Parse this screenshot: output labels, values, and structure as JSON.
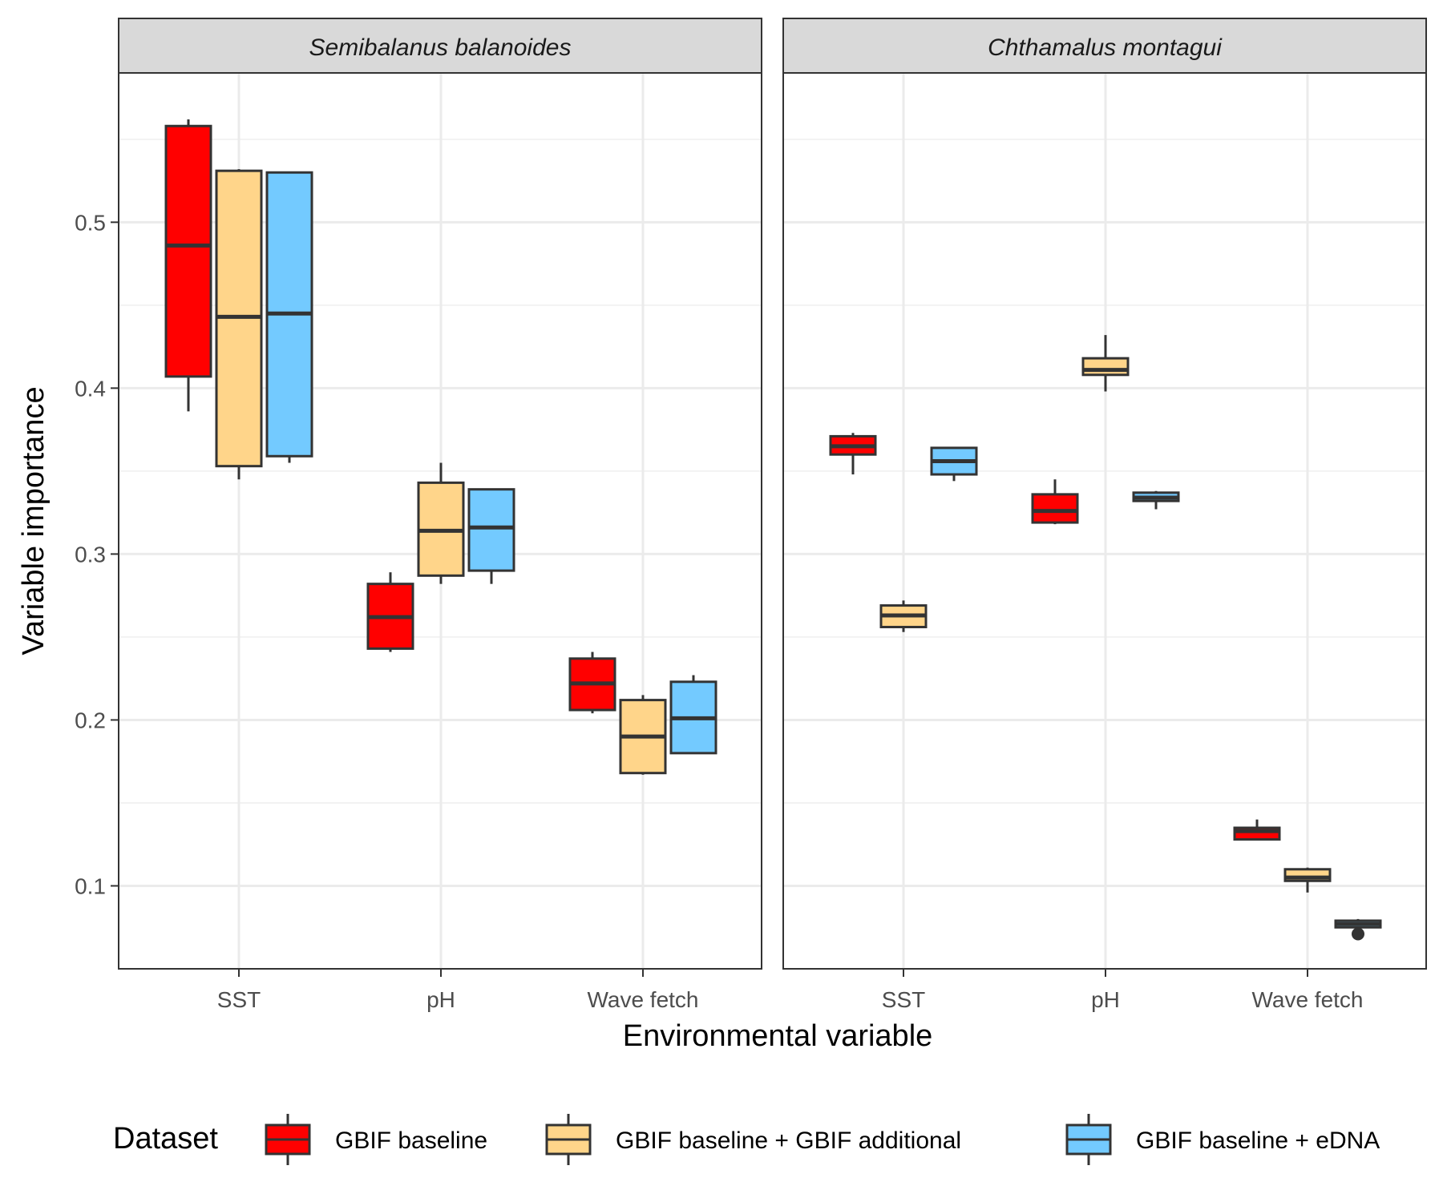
{
  "chart_data": {
    "type": "boxplot",
    "xlabel": "Environmental variable",
    "ylabel": "Variable importance",
    "ylim": [
      0.05,
      0.59
    ],
    "yticks": [
      0.1,
      0.2,
      0.3,
      0.4,
      0.5
    ],
    "ytick_labels": [
      "0.1",
      "0.2",
      "0.3",
      "0.4",
      "0.5"
    ],
    "categories": [
      "SST",
      "pH",
      "Wave fetch"
    ],
    "grid": true,
    "legend": {
      "title": "Dataset",
      "position": "bottom",
      "entries": [
        {
          "name": "GBIF baseline",
          "color": "#ff0000"
        },
        {
          "name": "GBIF baseline + GBIF additional",
          "color": "#ffd58a"
        },
        {
          "name": "GBIF baseline + eDNA",
          "color": "#73caff"
        }
      ]
    },
    "panels": [
      {
        "title": "Semibalanus balanoides",
        "boxes": [
          {
            "category": "SST",
            "dataset": 0,
            "min": 0.386,
            "q1": 0.407,
            "median": 0.486,
            "q3": 0.558,
            "max": 0.562
          },
          {
            "category": "SST",
            "dataset": 1,
            "min": 0.345,
            "q1": 0.353,
            "median": 0.443,
            "q3": 0.531,
            "max": 0.532
          },
          {
            "category": "SST",
            "dataset": 2,
            "min": 0.355,
            "q1": 0.359,
            "median": 0.445,
            "q3": 0.53,
            "max": 0.53
          },
          {
            "category": "pH",
            "dataset": 0,
            "min": 0.241,
            "q1": 0.243,
            "median": 0.262,
            "q3": 0.282,
            "max": 0.289
          },
          {
            "category": "pH",
            "dataset": 1,
            "min": 0.282,
            "q1": 0.287,
            "median": 0.314,
            "q3": 0.343,
            "max": 0.355
          },
          {
            "category": "pH",
            "dataset": 2,
            "min": 0.282,
            "q1": 0.29,
            "median": 0.316,
            "q3": 0.339,
            "max": 0.339
          },
          {
            "category": "Wave fetch",
            "dataset": 0,
            "min": 0.204,
            "q1": 0.206,
            "median": 0.222,
            "q3": 0.237,
            "max": 0.241
          },
          {
            "category": "Wave fetch",
            "dataset": 1,
            "min": 0.167,
            "q1": 0.168,
            "median": 0.19,
            "q3": 0.212,
            "max": 0.215
          },
          {
            "category": "Wave fetch",
            "dataset": 2,
            "min": 0.18,
            "q1": 0.18,
            "median": 0.201,
            "q3": 0.223,
            "max": 0.227
          }
        ]
      },
      {
        "title": "Chthamalus montagui",
        "boxes": [
          {
            "category": "SST",
            "dataset": 0,
            "min": 0.348,
            "q1": 0.36,
            "median": 0.365,
            "q3": 0.371,
            "max": 0.373
          },
          {
            "category": "SST",
            "dataset": 1,
            "min": 0.253,
            "q1": 0.256,
            "median": 0.263,
            "q3": 0.269,
            "max": 0.272
          },
          {
            "category": "SST",
            "dataset": 2,
            "min": 0.344,
            "q1": 0.348,
            "median": 0.356,
            "q3": 0.364,
            "max": 0.364
          },
          {
            "category": "pH",
            "dataset": 0,
            "min": 0.318,
            "q1": 0.319,
            "median": 0.326,
            "q3": 0.336,
            "max": 0.345
          },
          {
            "category": "pH",
            "dataset": 1,
            "min": 0.398,
            "q1": 0.408,
            "median": 0.411,
            "q3": 0.418,
            "max": 0.432
          },
          {
            "category": "pH",
            "dataset": 2,
            "min": 0.327,
            "q1": 0.332,
            "median": 0.334,
            "q3": 0.337,
            "max": 0.338
          },
          {
            "category": "Wave fetch",
            "dataset": 0,
            "min": 0.128,
            "q1": 0.128,
            "median": 0.133,
            "q3": 0.135,
            "max": 0.14
          },
          {
            "category": "Wave fetch",
            "dataset": 1,
            "min": 0.096,
            "q1": 0.103,
            "median": 0.105,
            "q3": 0.11,
            "max": 0.111
          },
          {
            "category": "Wave fetch",
            "dataset": 2,
            "min": 0.075,
            "q1": 0.075,
            "median": 0.077,
            "q3": 0.079,
            "max": 0.08,
            "outliers": [
              0.071
            ]
          }
        ]
      }
    ]
  }
}
